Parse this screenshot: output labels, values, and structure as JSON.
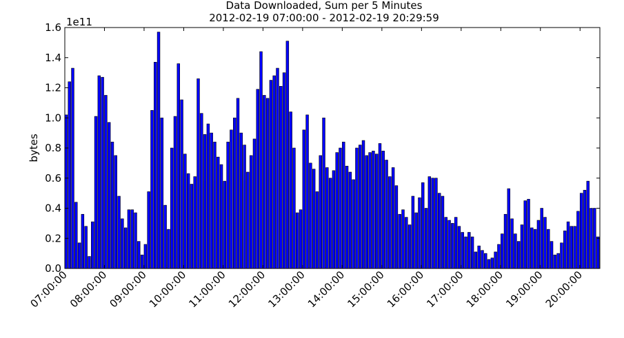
{
  "chart_data": {
    "type": "bar",
    "title": "Data Downloaded, Sum per 5 Minutes",
    "subtitle": "2012-02-19 07:00:00 - 2012-02-19 20:29:59",
    "xlabel": "",
    "ylabel": "bytes",
    "y_multiplier_label": "1e11",
    "y_unit": 100000000000.0,
    "ylim": [
      0,
      1.6
    ],
    "yticks": [
      0.0,
      0.2,
      0.4,
      0.6,
      0.8,
      1.0,
      1.2,
      1.4,
      1.6
    ],
    "ytick_labels": [
      "0.0",
      "0.2",
      "0.4",
      "0.6",
      "0.8",
      "1.0",
      "1.2",
      "1.4",
      "1.6"
    ],
    "xtick_labels": [
      "07:00:00",
      "08:00:00",
      "09:00:00",
      "10:00:00",
      "11:00:00",
      "12:00:00",
      "13:00:00",
      "14:00:00",
      "15:00:00",
      "16:00:00",
      "17:00:00",
      "18:00:00",
      "19:00:00",
      "20:00:00"
    ],
    "bin_minutes": 5,
    "grid": false,
    "bar_color": "#0000ff",
    "bar_edge_color": "#000000",
    "values": [
      1.02,
      1.24,
      1.33,
      0.44,
      0.17,
      0.36,
      0.28,
      0.08,
      0.31,
      1.01,
      1.28,
      1.27,
      1.15,
      0.97,
      0.84,
      0.75,
      0.48,
      0.33,
      0.27,
      0.39,
      0.39,
      0.37,
      0.18,
      0.09,
      0.16,
      0.51,
      1.05,
      1.37,
      1.57,
      1.0,
      0.42,
      0.26,
      0.8,
      1.01,
      1.36,
      1.12,
      0.76,
      0.63,
      0.56,
      0.61,
      1.26,
      1.03,
      0.89,
      0.96,
      0.9,
      0.84,
      0.74,
      0.69,
      0.58,
      0.84,
      0.92,
      1.0,
      1.13,
      0.9,
      0.82,
      0.64,
      0.75,
      0.86,
      1.19,
      1.44,
      1.15,
      1.13,
      1.25,
      1.28,
      1.33,
      1.21,
      1.3,
      1.51,
      1.04,
      0.8,
      0.37,
      0.39,
      0.92,
      1.02,
      0.7,
      0.66,
      0.51,
      0.75,
      1.0,
      0.67,
      0.6,
      0.65,
      0.77,
      0.8,
      0.84,
      0.68,
      0.64,
      0.59,
      0.8,
      0.82,
      0.85,
      0.75,
      0.77,
      0.78,
      0.76,
      0.83,
      0.78,
      0.72,
      0.61,
      0.67,
      0.55,
      0.36,
      0.39,
      0.34,
      0.29,
      0.48,
      0.37,
      0.47,
      0.57,
      0.4,
      0.61,
      0.6,
      0.6,
      0.5,
      0.48,
      0.34,
      0.32,
      0.3,
      0.34,
      0.28,
      0.24,
      0.21,
      0.24,
      0.21,
      0.11,
      0.15,
      0.12,
      0.1,
      0.06,
      0.07,
      0.11,
      0.16,
      0.23,
      0.36,
      0.53,
      0.33,
      0.23,
      0.18,
      0.29,
      0.45,
      0.46,
      0.27,
      0.26,
      0.32,
      0.4,
      0.34,
      0.26,
      0.18,
      0.09,
      0.1,
      0.17,
      0.25,
      0.31,
      0.28,
      0.28,
      0.38,
      0.5,
      0.52,
      0.58,
      0.4,
      0.4,
      0.21
    ]
  }
}
